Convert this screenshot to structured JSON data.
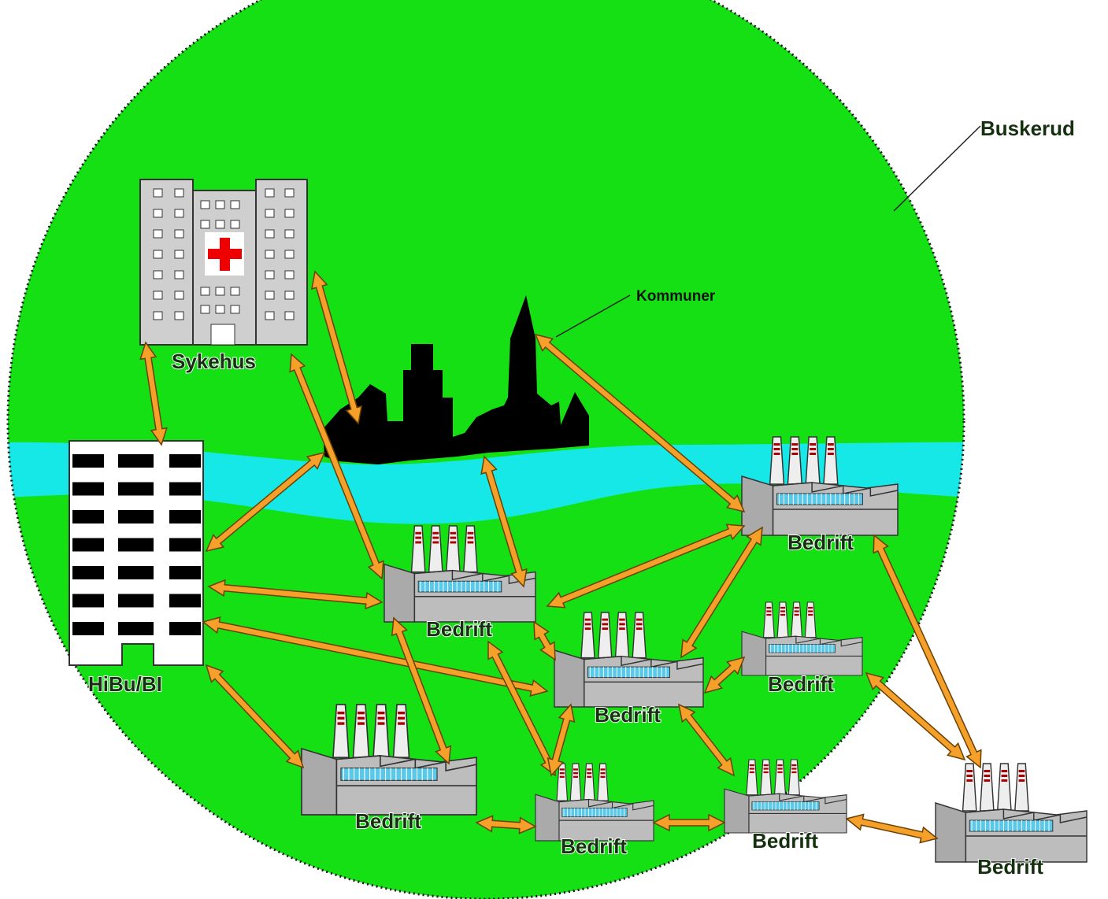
{
  "region": {
    "label": "Buskerud"
  },
  "nodes": [
    {
      "label": "Sykehus"
    },
    {
      "label": "HiBu/BI"
    },
    {
      "label": "Kommuner"
    },
    {
      "label": "Bedrift"
    },
    {
      "label": "Bedrift"
    },
    {
      "label": "Bedrift"
    },
    {
      "label": "Bedrift"
    },
    {
      "label": "Bedrift"
    },
    {
      "label": "Bedrift"
    },
    {
      "label": "Bedrift"
    },
    {
      "label": "Bedrift"
    }
  ]
}
